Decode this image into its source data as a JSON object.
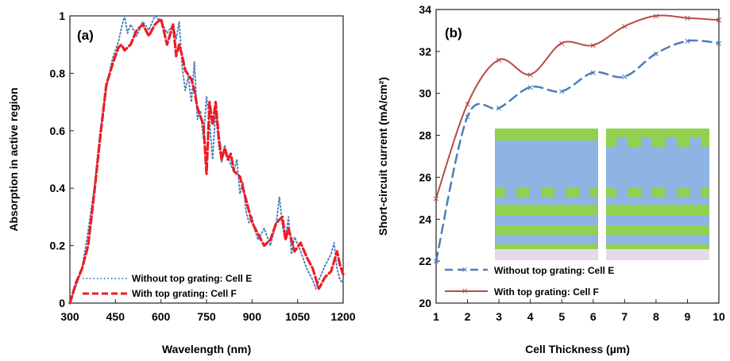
{
  "colors": {
    "blue_dotted": "#4f81bd",
    "red_dashed": "#ee1c24",
    "blue_dashed": "#4a7ebb",
    "dark_red": "#b94a48",
    "green": "#92d050",
    "cell_blue": "#8db4e2",
    "pink": "#e6d9e8"
  },
  "chart_data": [
    {
      "type": "line",
      "panel_label": "(a)",
      "title": "",
      "xlabel": "Wavelength (nm)",
      "ylabel": "Absorption in active region",
      "xlim": [
        300,
        1200
      ],
      "ylim": [
        0,
        1
      ],
      "xticks": [
        "300",
        "450",
        "600",
        "750",
        "900",
        "1050",
        "1200"
      ],
      "yticks": [
        "0",
        "0.2",
        "0.4",
        "0.6",
        "0.8",
        "1"
      ],
      "grid": false,
      "legend_position": "bottom-left",
      "series": [
        {
          "name": "Without top grating:  Cell E",
          "style": "dotted",
          "x": [
            300,
            320,
            340,
            360,
            380,
            400,
            420,
            440,
            460,
            470,
            480,
            490,
            500,
            520,
            540,
            560,
            580,
            600,
            620,
            640,
            650,
            660,
            670,
            680,
            690,
            700,
            710,
            720,
            730,
            740,
            750,
            760,
            770,
            780,
            790,
            800,
            810,
            820,
            830,
            840,
            850,
            860,
            870,
            880,
            890,
            900,
            910,
            920,
            940,
            960,
            980,
            990,
            1000,
            1010,
            1020,
            1030,
            1040,
            1060,
            1080,
            1100,
            1110,
            1120,
            1140,
            1160,
            1170,
            1180,
            1190,
            1200
          ],
          "y": [
            0.0,
            0.06,
            0.12,
            0.25,
            0.4,
            0.6,
            0.75,
            0.85,
            0.91,
            0.96,
            1.0,
            0.94,
            0.97,
            0.93,
            0.98,
            0.95,
            1.0,
            0.98,
            0.94,
            0.97,
            0.92,
            0.98,
            0.82,
            0.74,
            0.79,
            0.7,
            0.84,
            0.64,
            0.67,
            0.57,
            0.72,
            0.63,
            0.5,
            0.67,
            0.55,
            0.49,
            0.55,
            0.51,
            0.48,
            0.46,
            0.5,
            0.38,
            0.42,
            0.32,
            0.28,
            0.3,
            0.25,
            0.22,
            0.26,
            0.2,
            0.28,
            0.37,
            0.27,
            0.22,
            0.3,
            0.17,
            0.23,
            0.18,
            0.12,
            0.08,
            0.05,
            0.08,
            0.13,
            0.17,
            0.21,
            0.12,
            0.08,
            0.07
          ]
        },
        {
          "name": "With top grating:  Cell F",
          "style": "dashed",
          "x": [
            300,
            320,
            340,
            360,
            380,
            400,
            420,
            440,
            460,
            470,
            480,
            500,
            520,
            540,
            560,
            580,
            600,
            620,
            640,
            650,
            660,
            670,
            680,
            700,
            710,
            720,
            730,
            740,
            750,
            760,
            770,
            780,
            790,
            800,
            810,
            820,
            830,
            840,
            860,
            880,
            900,
            920,
            940,
            960,
            980,
            1000,
            1010,
            1020,
            1040,
            1060,
            1080,
            1100,
            1120,
            1140,
            1160,
            1180,
            1190,
            1200
          ],
          "y": [
            0.0,
            0.07,
            0.12,
            0.2,
            0.38,
            0.58,
            0.76,
            0.83,
            0.89,
            0.9,
            0.88,
            0.9,
            0.95,
            0.97,
            0.93,
            0.97,
            0.99,
            0.9,
            0.97,
            0.86,
            0.9,
            0.86,
            0.81,
            0.78,
            0.74,
            0.68,
            0.65,
            0.62,
            0.45,
            0.7,
            0.62,
            0.7,
            0.58,
            0.5,
            0.54,
            0.5,
            0.52,
            0.46,
            0.44,
            0.36,
            0.28,
            0.24,
            0.2,
            0.22,
            0.28,
            0.3,
            0.22,
            0.26,
            0.18,
            0.21,
            0.16,
            0.12,
            0.05,
            0.09,
            0.11,
            0.18,
            0.13,
            0.1
          ]
        }
      ]
    },
    {
      "type": "line",
      "panel_label": "(b)",
      "title": "",
      "xlabel": "Cell Thickness (µm)",
      "ylabel": "Short-circuit current (mA/cm²)",
      "xlim": [
        1,
        10
      ],
      "ylim": [
        20,
        34
      ],
      "xticks": [
        "1",
        "2",
        "3",
        "4",
        "5",
        "6",
        "7",
        "8",
        "9",
        "10"
      ],
      "yticks": [
        "20",
        "22",
        "24",
        "26",
        "28",
        "30",
        "32",
        "34"
      ],
      "grid": false,
      "legend_position": "bottom-left",
      "series": [
        {
          "name": "Without top grating:  Cell E",
          "style": "dashed",
          "marker": "x",
          "x": [
            1,
            2,
            3,
            4,
            5,
            6,
            7,
            8,
            9,
            10
          ],
          "y": [
            22.0,
            28.9,
            29.3,
            30.3,
            30.1,
            31.0,
            30.8,
            31.9,
            32.5,
            32.4
          ]
        },
        {
          "name": "With top grating:  Cell F",
          "style": "solid",
          "marker": "x",
          "x": [
            1,
            2,
            3,
            4,
            5,
            6,
            7,
            8,
            9,
            10
          ],
          "y": [
            25.0,
            29.5,
            31.6,
            30.9,
            32.4,
            32.3,
            33.2,
            33.7,
            33.6,
            33.5
          ]
        }
      ]
    }
  ]
}
